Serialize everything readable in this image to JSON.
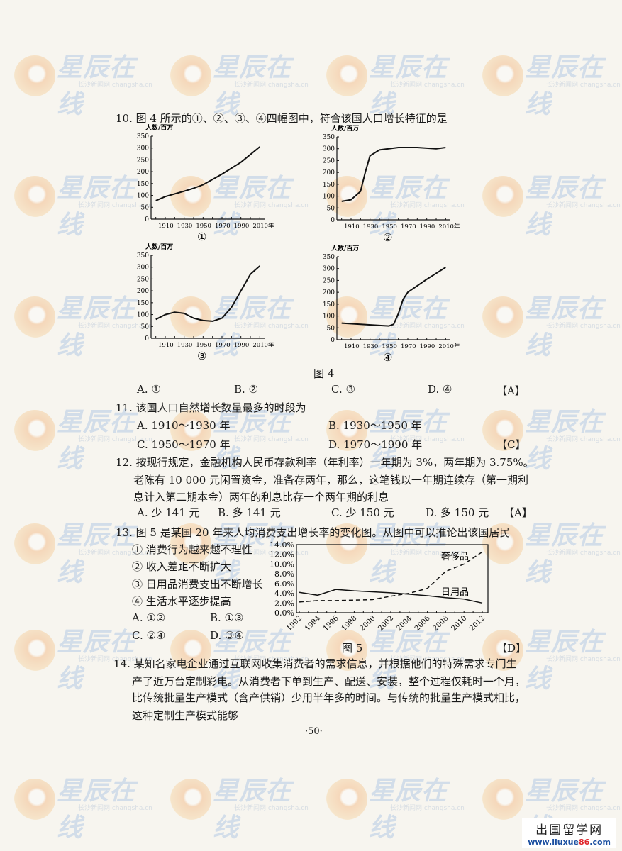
{
  "watermark": {
    "text": "星辰在线",
    "subtext": "长沙新闻网 changsha.cn"
  },
  "q10": {
    "stem": "10. 图 4 所示的①、②、③、④四幅图中，符合该国人口增长特征的是",
    "figure_caption": "图 4",
    "options": [
      "A. ①",
      "B. ②",
      "C. ③",
      "D. ④"
    ],
    "answer": "【A】"
  },
  "q11": {
    "stem": "11. 该国人口自然增长数量最多的时段为",
    "options": [
      "A. 1910～1930 年",
      "B. 1930～1950 年",
      "C. 1950～1970 年",
      "D. 1970～1990 年"
    ],
    "answer": "【C】"
  },
  "q12": {
    "lines": [
      "12. 按现行规定，金融机构人民币存款利率（年利率）一年期为 3%，两年期为 3.75%。",
      "老陈有 10 000 元闲置资金，准备存两年，那么，这笔钱以一年期连续存（第一期利",
      "息计入第二期本金）两年的利息比存一个两年期的利息"
    ],
    "options": [
      "A. 少 141 元",
      "B. 多 141 元",
      "C. 少 150 元",
      "D. 多 150 元"
    ],
    "answer": "【A】"
  },
  "q13": {
    "stem": "13. 图 5 是某国 20 年来人均消费支出增长率的变化图。从图中可以推论出该国居民",
    "items": [
      "① 消费行为越来越不理性",
      "② 收入差距不断扩大",
      "③ 日用品消费支出不断增长",
      "④ 生活水平逐步提高"
    ],
    "options": [
      "A. ①②",
      "B. ①③",
      "C. ②④",
      "D. ③④"
    ],
    "figure_caption": "图 5",
    "answer": "【D】"
  },
  "q14": {
    "lines": [
      "14. 某知名家电企业通过互联网收集消费者的需求信息，并根据他们的特殊需求专门生",
      "产了近万台定制彩电。从消费者下单到生产、配送、安装，整个过程仅耗时一个月，",
      "比传统批量生产模式（含产供销）少用半年多的时间。与传统的批量生产模式相比，",
      "这种定制生产模式能够"
    ]
  },
  "page_number": "·50·",
  "site_logo": {
    "name": "出国留学网",
    "url_a": "www.liuxue",
    "url_b": "86",
    "url_c": ".com"
  },
  "chart_data": [
    {
      "type": "line",
      "label": "①",
      "ylabel": "人数/百万",
      "yticks": [
        0,
        50,
        100,
        150,
        200,
        250,
        300,
        350
      ],
      "xticks": [
        "1910",
        "1930",
        "1950",
        "1970",
        "1990",
        "2010年"
      ],
      "ylim": [
        0,
        350
      ],
      "series": [
        {
          "x": [
            1900,
            1910,
            1930,
            1940,
            1950,
            1970,
            1990,
            2010
          ],
          "y": [
            78,
            95,
            118,
            130,
            145,
            190,
            240,
            305
          ]
        }
      ]
    },
    {
      "type": "line",
      "label": "②",
      "ylabel": "人数/百万",
      "yticks": [
        0,
        50,
        100,
        150,
        200,
        250,
        300,
        350
      ],
      "xticks": [
        "1910",
        "1930",
        "1950",
        "1970",
        "1990",
        "2010年"
      ],
      "ylim": [
        0,
        350
      ],
      "series": [
        {
          "x": [
            1900,
            1910,
            1920,
            1925,
            1930,
            1940,
            1960,
            1980,
            2000,
            2010
          ],
          "y": [
            78,
            85,
            120,
            200,
            270,
            295,
            305,
            305,
            300,
            305
          ]
        }
      ]
    },
    {
      "type": "line",
      "label": "③",
      "ylabel": "人数/百万",
      "yticks": [
        0,
        50,
        100,
        150,
        200,
        250,
        300,
        350
      ],
      "xticks": [
        "1910",
        "1930",
        "1950",
        "1970",
        "1990",
        "2010年"
      ],
      "ylim": [
        0,
        350
      ],
      "series": [
        {
          "x": [
            1900,
            1910,
            1920,
            1930,
            1940,
            1950,
            1960,
            1970,
            1980,
            1990,
            2000,
            2010
          ],
          "y": [
            80,
            100,
            110,
            105,
            85,
            75,
            72,
            85,
            130,
            200,
            270,
            305
          ]
        }
      ]
    },
    {
      "type": "line",
      "label": "④",
      "ylabel": "人数/百万",
      "yticks": [
        0,
        50,
        100,
        150,
        200,
        250,
        300,
        350
      ],
      "xticks": [
        "1910",
        "1930",
        "1950",
        "1970",
        "1990",
        "2010年"
      ],
      "ylim": [
        0,
        350
      ],
      "series": [
        {
          "x": [
            1900,
            1920,
            1940,
            1950,
            1955,
            1960,
            1965,
            1970,
            1990,
            2010
          ],
          "y": [
            70,
            65,
            60,
            58,
            65,
            110,
            170,
            200,
            255,
            305
          ]
        }
      ]
    },
    {
      "type": "line",
      "yticks": [
        "0.0%",
        "2.0%",
        "4.0%",
        "6.0%",
        "8.0%",
        "10.0%",
        "12.0%",
        "14.0%"
      ],
      "ylim": [
        0,
        14
      ],
      "xticks": [
        "1992",
        "1994",
        "1996",
        "1998",
        "2000",
        "2002",
        "2004",
        "2006",
        "2008",
        "2010",
        "2012"
      ],
      "series": [
        {
          "name": "奢侈品",
          "style": "dashed",
          "x": [
            1992,
            1994,
            1996,
            1998,
            2000,
            2002,
            2004,
            2006,
            2008,
            2010,
            2012
          ],
          "y": [
            2.2,
            2.5,
            2.5,
            2.6,
            2.7,
            3.4,
            4.0,
            5.0,
            8.5,
            10.0,
            12.5
          ]
        },
        {
          "name": "日用品",
          "style": "solid",
          "x": [
            1992,
            1994,
            1996,
            1998,
            2000,
            2002,
            2004,
            2006,
            2008,
            2010,
            2012
          ],
          "y": [
            4.2,
            3.6,
            4.8,
            4.5,
            4.3,
            4.1,
            3.8,
            3.5,
            3.1,
            2.8,
            2.0
          ]
        }
      ]
    }
  ]
}
